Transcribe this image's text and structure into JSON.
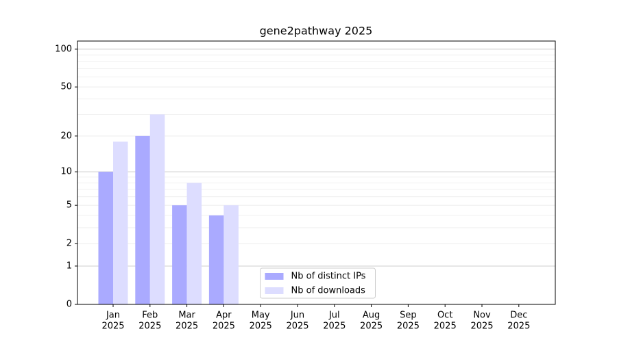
{
  "chart_data": {
    "type": "bar",
    "title": "gene2pathway 2025",
    "categories": [
      [
        "Jan",
        "2025"
      ],
      [
        "Feb",
        "2025"
      ],
      [
        "Mar",
        "2025"
      ],
      [
        "Apr",
        "2025"
      ],
      [
        "May",
        "2025"
      ],
      [
        "Jun",
        "2025"
      ],
      [
        "Jul",
        "2025"
      ],
      [
        "Aug",
        "2025"
      ],
      [
        "Sep",
        "2025"
      ],
      [
        "Oct",
        "2025"
      ],
      [
        "Nov",
        "2025"
      ],
      [
        "Dec",
        "2025"
      ]
    ],
    "series": [
      {
        "name": "Nb of distinct IPs",
        "color": "#aaaaff",
        "values": [
          10,
          20,
          5,
          4,
          null,
          null,
          null,
          null,
          null,
          null,
          null,
          null
        ]
      },
      {
        "name": "Nb of downloads",
        "color": "#ddddff",
        "values": [
          18,
          30,
          8,
          5,
          null,
          null,
          null,
          null,
          null,
          null,
          null,
          null
        ]
      }
    ],
    "yscale": "log1p",
    "ylim": [
      0,
      116
    ],
    "yticks": [
      0,
      1,
      2,
      5,
      10,
      20,
      50,
      100
    ],
    "yminorticks": [
      3,
      4,
      6,
      7,
      8,
      9,
      30,
      40,
      60,
      70,
      80,
      90
    ],
    "grid": true,
    "legend": "lower center"
  }
}
